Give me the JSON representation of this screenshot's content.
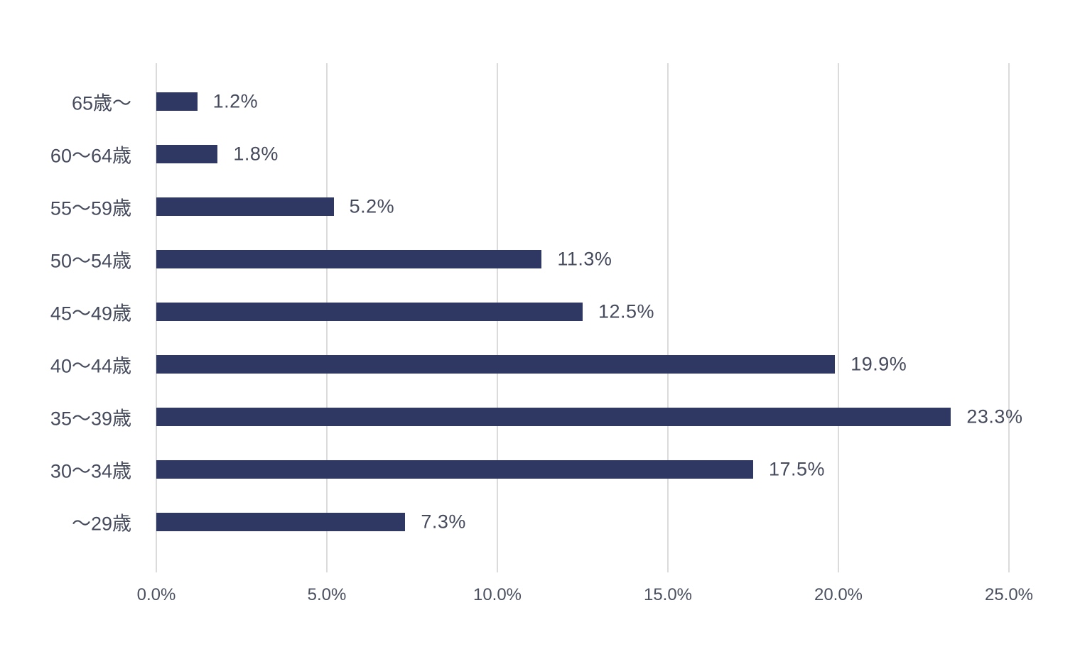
{
  "chart_data": {
    "type": "bar",
    "orientation": "horizontal",
    "title": "",
    "xlabel": "",
    "ylabel": "",
    "grid": true,
    "legend": false,
    "xlim": [
      0,
      25
    ],
    "categories": [
      "65歳〜",
      "60〜64歳",
      "55〜59歳",
      "50〜54歳",
      "45〜49歳",
      "40〜44歳",
      "35〜39歳",
      "30〜34歳",
      "〜29歳"
    ],
    "values": [
      1.2,
      1.8,
      5.2,
      11.3,
      12.5,
      19.9,
      23.3,
      17.5,
      7.3
    ],
    "data_labels": [
      "1.2%",
      "1.8%",
      "5.2%",
      "11.3%",
      "12.5%",
      "19.9%",
      "23.3%",
      "17.5%",
      "7.3%"
    ],
    "x_ticks": [
      {
        "label": "0.0%",
        "value": 0
      },
      {
        "label": "5.0%",
        "value": 5
      },
      {
        "label": "10.0%",
        "value": 10
      },
      {
        "label": "15.0%",
        "value": 15
      },
      {
        "label": "20.0%",
        "value": 20
      },
      {
        "label": "25.0%",
        "value": 25
      }
    ],
    "colors": {
      "bar": "#2F3763",
      "label_text": "#454B5C",
      "tick_text": "#4A5060",
      "gridline": "#DBDBDB",
      "background": "#FFFFFF"
    }
  }
}
